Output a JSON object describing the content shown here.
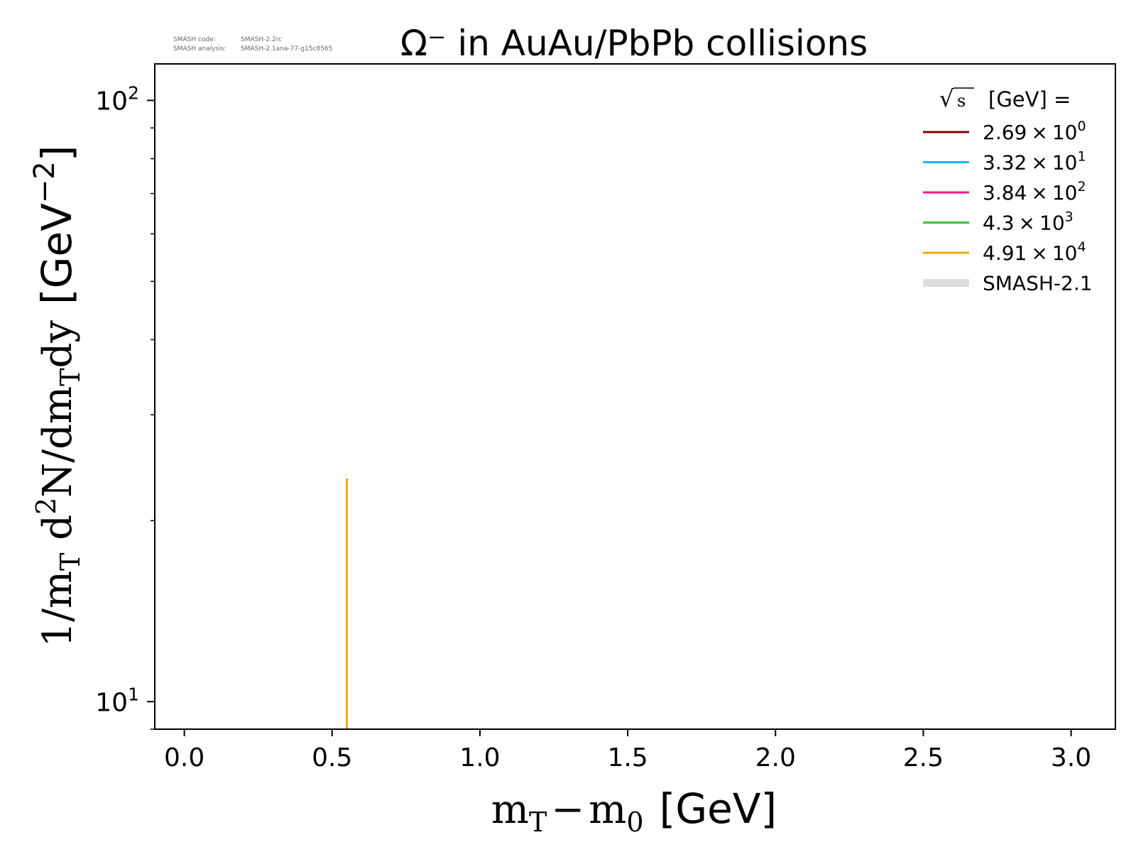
{
  "header": {
    "version_code_label": "SMASH code:",
    "version_code_value": "SMASH-2.2rc",
    "version_analysis_label": "SMASH analysis:",
    "version_analysis_value": "SMASH-2.1ana-77-g15c8565"
  },
  "chart_data": {
    "type": "line",
    "title": "Ω⁻ in AuAu/PbPb collisions",
    "xlabel": {
      "main": "m",
      "sub": "T",
      "minus": "−",
      "main2": "m",
      "sub2": "0",
      "unit": "[GeV]"
    },
    "ylabel": {
      "prefix": "1/m",
      "sub1": "T",
      "mid": " d",
      "sup": "2",
      "mid2": "N/dm",
      "sub2": "T",
      "end": "dy",
      "unit_open": "[GeV",
      "unit_sup": "−2",
      "unit_close": "]"
    },
    "xlim": [
      -0.1,
      3.15
    ],
    "ylim": [
      9.0,
      115
    ],
    "yscale": "log",
    "x_ticks": [
      "0.0",
      "0.5",
      "1.0",
      "1.5",
      "2.0",
      "2.5",
      "3.0"
    ],
    "x_tick_values": [
      0.0,
      0.5,
      1.0,
      1.5,
      2.0,
      2.5,
      3.0
    ],
    "y_major_ticks": [
      {
        "value": 10,
        "base": "10",
        "exp": "1"
      },
      {
        "value": 100,
        "base": "10",
        "exp": "2"
      }
    ],
    "y_minor_ticks": [
      9,
      20,
      30,
      40,
      50,
      60,
      70,
      80,
      90
    ],
    "grid": false,
    "legend": {
      "placement": "top-right",
      "title_sqrt": "√",
      "title_s": "s",
      "title_rest": "[GeV] =",
      "entries": [
        {
          "mantissa": "2.69",
          "times": "×",
          "base": "10",
          "exp": "0",
          "color": "#8b0000"
        },
        {
          "mantissa": "3.32",
          "times": "×",
          "base": "10",
          "exp": "1",
          "color": "#1eb4f0"
        },
        {
          "mantissa": "3.84",
          "times": "×",
          "base": "10",
          "exp": "2",
          "color": "#ff1493"
        },
        {
          "mantissa": "4.3",
          "times": "×",
          "base": "10",
          "exp": "3",
          "color": "#32cd32"
        },
        {
          "mantissa": "4.91",
          "times": "×",
          "base": "10",
          "exp": "4",
          "color": "#ffa500"
        }
      ],
      "model_entry": {
        "label": "SMASH-2.1",
        "color": "#dddddd"
      }
    },
    "series": [
      {
        "color": "#ffa500",
        "x": [
          0.55,
          0.55
        ],
        "y": [
          9.0,
          23.5
        ]
      }
    ]
  }
}
